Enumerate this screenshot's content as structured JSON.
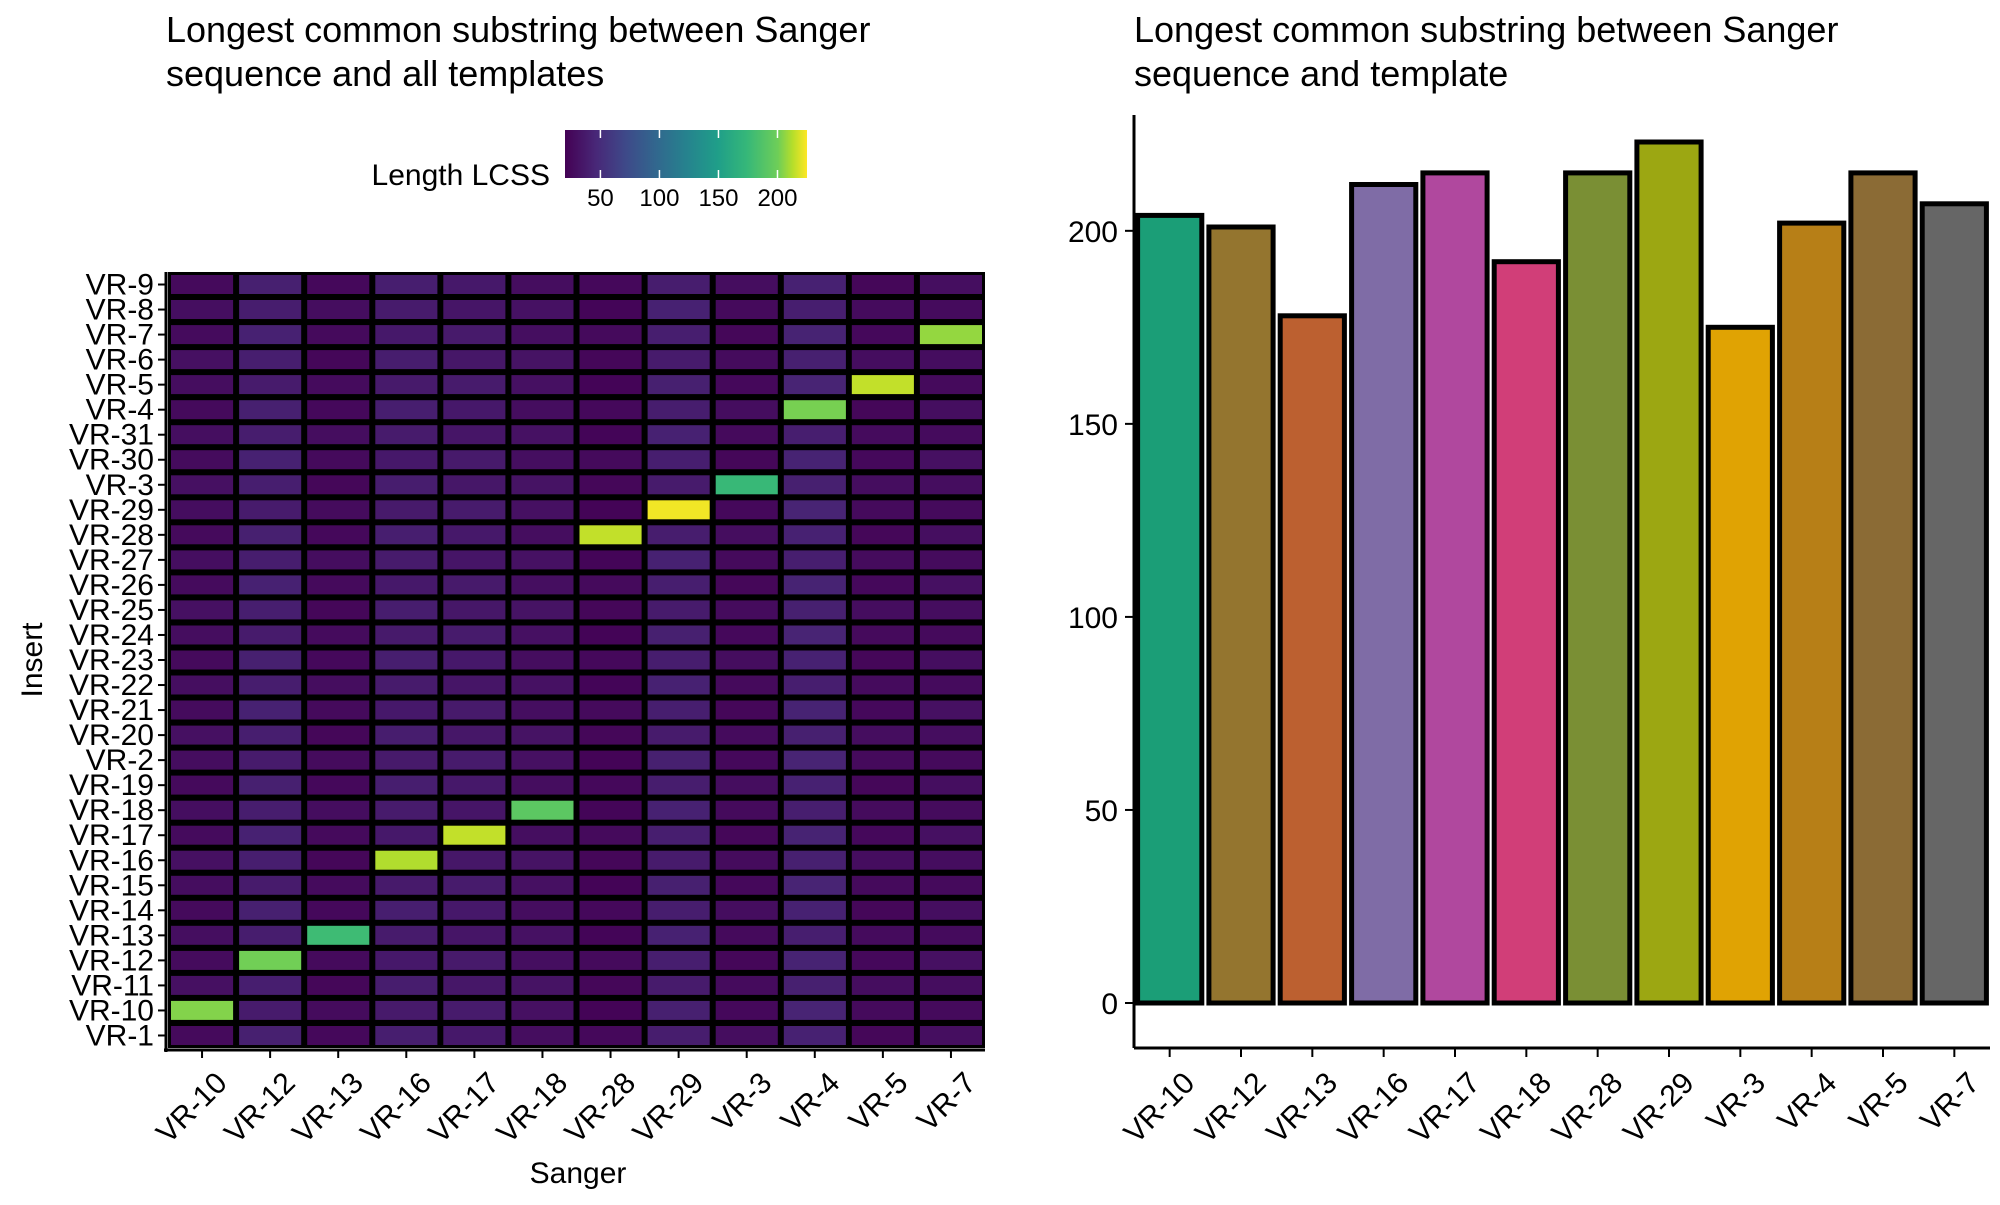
{
  "heatmap": {
    "title_line1": "Longest common substring between Sanger",
    "title_line2": "sequence and all templates",
    "legend_title": "Length LCSS",
    "legend_ticks": [
      "50",
      "100",
      "150",
      "200"
    ],
    "xlabel": "Sanger",
    "ylabel": "Insert"
  },
  "barplot": {
    "title_line1": "Longest common substring between Sanger",
    "title_line2": "sequence and template"
  },
  "chart_data": [
    {
      "type": "heatmap",
      "title": "Longest common substring between Sanger sequence and all templates",
      "xlabel": "Sanger",
      "ylabel": "Insert",
      "colorbar": {
        "label": "Length LCSS",
        "range": [
          20,
          225
        ],
        "ticks": [
          50,
          100,
          150,
          200
        ],
        "palette": "viridis"
      },
      "x_categories": [
        "VR-10",
        "VR-12",
        "VR-13",
        "VR-16",
        "VR-17",
        "VR-18",
        "VR-28",
        "VR-29",
        "VR-3",
        "VR-4",
        "VR-5",
        "VR-7"
      ],
      "y_categories": [
        "VR-1",
        "VR-10",
        "VR-11",
        "VR-12",
        "VR-13",
        "VR-14",
        "VR-15",
        "VR-16",
        "VR-17",
        "VR-18",
        "VR-19",
        "VR-2",
        "VR-20",
        "VR-21",
        "VR-22",
        "VR-23",
        "VR-24",
        "VR-25",
        "VR-26",
        "VR-27",
        "VR-28",
        "VR-29",
        "VR-3",
        "VR-30",
        "VR-31",
        "VR-4",
        "VR-5",
        "VR-6",
        "VR-7",
        "VR-8",
        "VR-9"
      ],
      "background_by_column": [
        28,
        40,
        26,
        38,
        36,
        30,
        24,
        40,
        26,
        42,
        26,
        28
      ],
      "highlights": [
        {
          "x": "VR-10",
          "y": "VR-10",
          "value": 204
        },
        {
          "x": "VR-12",
          "y": "VR-12",
          "value": 201
        },
        {
          "x": "VR-13",
          "y": "VR-13",
          "value": 178
        },
        {
          "x": "VR-16",
          "y": "VR-16",
          "value": 212
        },
        {
          "x": "VR-17",
          "y": "VR-17",
          "value": 215
        },
        {
          "x": "VR-18",
          "y": "VR-18",
          "value": 192
        },
        {
          "x": "VR-28",
          "y": "VR-28",
          "value": 215
        },
        {
          "x": "VR-29",
          "y": "VR-29",
          "value": 223
        },
        {
          "x": "VR-3",
          "y": "VR-3",
          "value": 175
        },
        {
          "x": "VR-4",
          "y": "VR-4",
          "value": 202
        },
        {
          "x": "VR-5",
          "y": "VR-5",
          "value": 215
        },
        {
          "x": "VR-7",
          "y": "VR-7",
          "value": 207
        }
      ]
    },
    {
      "type": "bar",
      "title": "Longest common substring between Sanger sequence and template",
      "categories": [
        "VR-10",
        "VR-12",
        "VR-13",
        "VR-16",
        "VR-17",
        "VR-18",
        "VR-28",
        "VR-29",
        "VR-3",
        "VR-4",
        "VR-5",
        "VR-7"
      ],
      "values": [
        204,
        201,
        178,
        212,
        215,
        192,
        215,
        223,
        175,
        202,
        215,
        207
      ],
      "colors": [
        "#1b9e77",
        "#94752f",
        "#bc6030",
        "#7f6ca6",
        "#b0489e",
        "#d13e78",
        "#7a8f34",
        "#9ca712",
        "#e0a303",
        "#b77f17",
        "#8b6b35",
        "#666666"
      ],
      "ylim": [
        0,
        230
      ],
      "yticks": [
        0,
        50,
        100,
        150,
        200
      ],
      "grid": false
    }
  ]
}
